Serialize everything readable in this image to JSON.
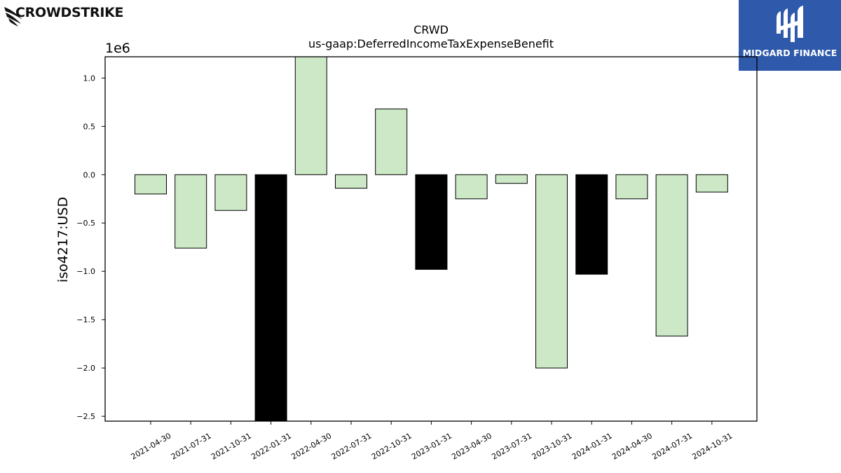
{
  "logos": {
    "left": "CROWDSTRIKE",
    "right": "MIDGARD FINANCE"
  },
  "chart_data": {
    "type": "bar",
    "title": "CRWD",
    "subtitle": "us-gaap:DeferredIncomeTaxExpenseBenefit",
    "ylabel": "iso4217:USD",
    "xlabel": "",
    "offset_label": "1e6",
    "ylim": [
      -2.55,
      1.22
    ],
    "yticks": [
      1.0,
      0.5,
      0.0,
      -0.5,
      -1.0,
      -1.5,
      -2.0,
      -2.5
    ],
    "ytick_labels": [
      "1.0",
      "0.5",
      "0.0",
      "−0.5",
      "−1.0",
      "−1.5",
      "−2.0",
      "−2.5"
    ],
    "grid": false,
    "categories": [
      "2021-04-30",
      "2021-07-31",
      "2021-10-31",
      "2022-01-31",
      "2022-04-30",
      "2022-07-31",
      "2022-10-31",
      "2023-01-31",
      "2023-04-30",
      "2023-07-31",
      "2023-10-31",
      "2024-01-31",
      "2024-04-30",
      "2024-07-31",
      "2024-10-31"
    ],
    "values": [
      -0.2,
      -0.76,
      -0.37,
      -2.6,
      1.3,
      -0.14,
      0.68,
      -0.98,
      -0.25,
      -0.09,
      -2.0,
      -1.03,
      -0.25,
      -1.67,
      -0.18
    ],
    "bar_colors": [
      "#cce8c6",
      "#cce8c6",
      "#cce8c6",
      "#000000",
      "#cce8c6",
      "#cce8c6",
      "#cce8c6",
      "#000000",
      "#cce8c6",
      "#cce8c6",
      "#cce8c6",
      "#000000",
      "#cce8c6",
      "#cce8c6",
      "#cce8c6"
    ]
  }
}
